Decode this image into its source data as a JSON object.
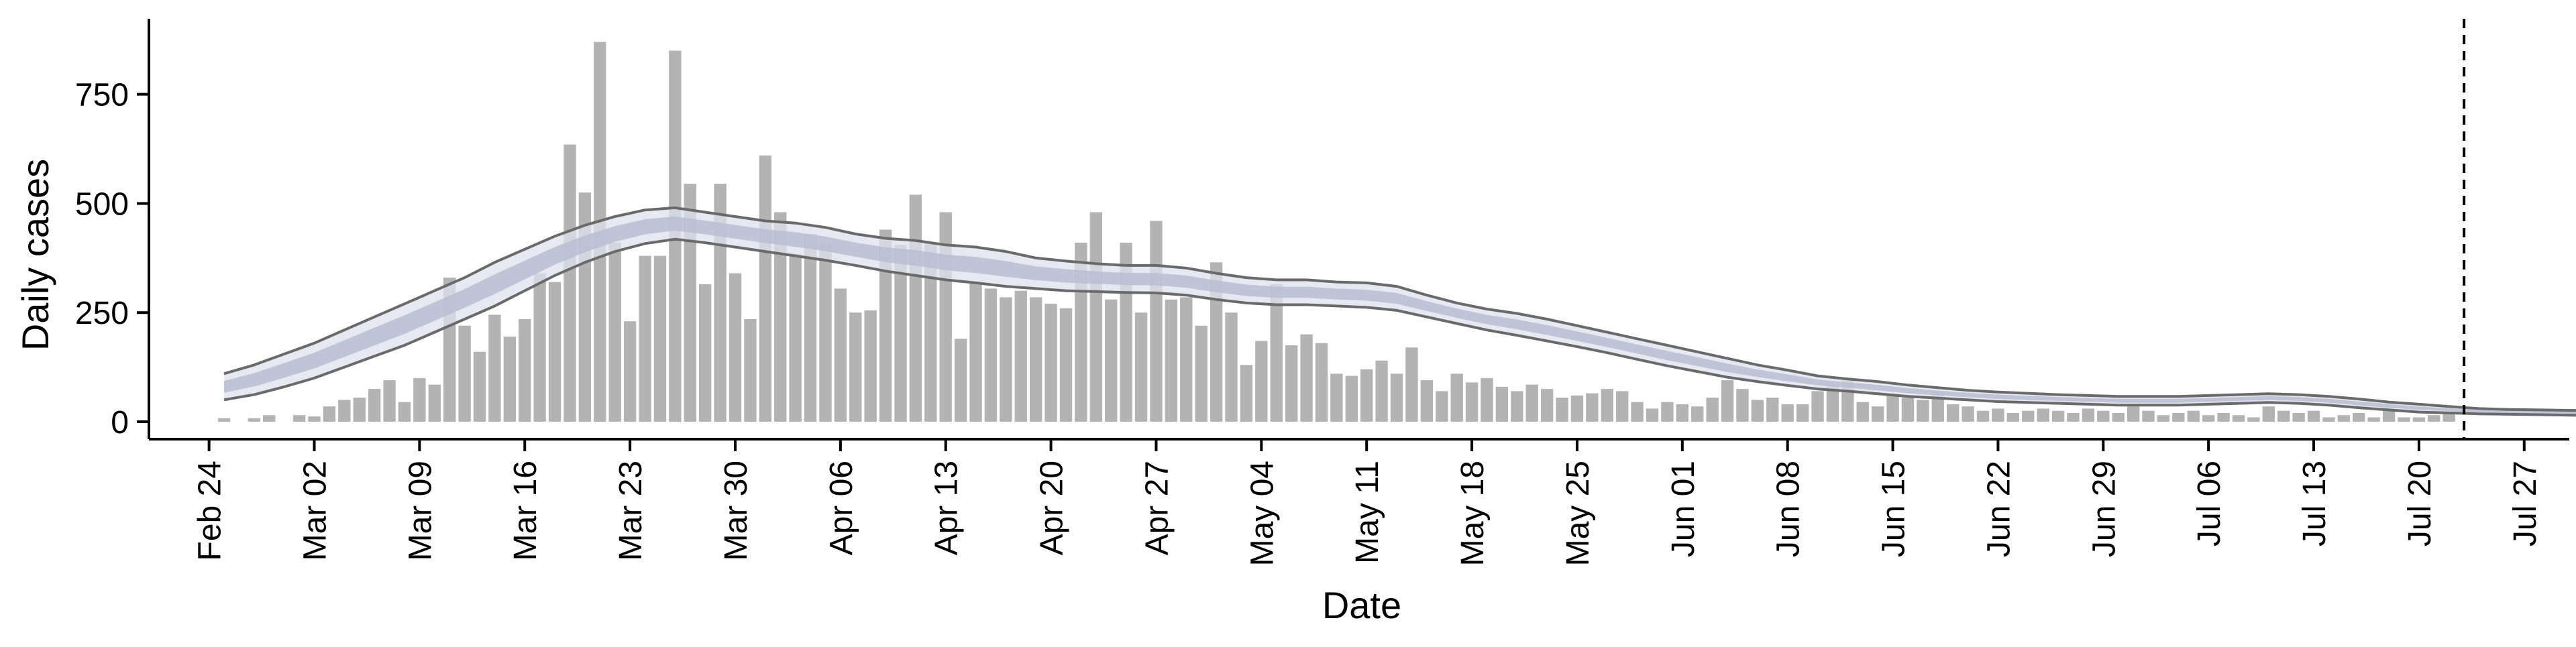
{
  "chart_data": {
    "type": "bar",
    "xlabel": "Date",
    "ylabel": "Daily cases",
    "ylim": [
      -40,
      920
    ],
    "yticks": [
      0,
      250,
      500,
      750
    ],
    "x_start_date": "2020-02-24",
    "xticks": [
      "Feb 24",
      "Mar 02",
      "Mar 09",
      "Mar 16",
      "Mar 23",
      "Mar 30",
      "Apr 06",
      "Apr 13",
      "Apr 20",
      "Apr 27",
      "May 04",
      "May 11",
      "May 18",
      "May 25",
      "Jun 01",
      "Jun 08",
      "Jun 15",
      "Jun 22",
      "Jun 29",
      "Jul 06",
      "Jul 13",
      "Jul 20",
      "Jul 27"
    ],
    "xlim": [
      "2020-02-20",
      "2020-07-30"
    ],
    "vline_date": "2020-07-23",
    "vline_style": "dashed",
    "colors": {
      "bars": "#b3b3b3",
      "band_outer": "#dde1ec",
      "band_inner": "#b7bdd2",
      "band_lines": "#6a6a6a"
    },
    "bars": {
      "start_date": "2020-02-25",
      "values": [
        8,
        0,
        8,
        15,
        0,
        15,
        12,
        35,
        50,
        55,
        75,
        95,
        45,
        100,
        85,
        330,
        220,
        160,
        245,
        195,
        235,
        340,
        320,
        635,
        525,
        870,
        410,
        230,
        380,
        380,
        850,
        545,
        315,
        545,
        340,
        235,
        610,
        480,
        385,
        430,
        410,
        305,
        250,
        255,
        440,
        405,
        520,
        410,
        480,
        190,
        320,
        305,
        285,
        300,
        285,
        270,
        260,
        410,
        480,
        280,
        410,
        250,
        460,
        280,
        285,
        220,
        365,
        250,
        130,
        185,
        315,
        175,
        200,
        180,
        110,
        105,
        120,
        140,
        110,
        170,
        95,
        70,
        110,
        90,
        100,
        80,
        70,
        85,
        75,
        55,
        60,
        65,
        75,
        70,
        45,
        30,
        45,
        40,
        35,
        55,
        95,
        75,
        50,
        55,
        40,
        40,
        70,
        85,
        95,
        45,
        35,
        60,
        55,
        50,
        70,
        40,
        35,
        25,
        30,
        20,
        25,
        30,
        25,
        20,
        30,
        25,
        20,
        35,
        25,
        15,
        20,
        25,
        15,
        20,
        15,
        10,
        35,
        25,
        20,
        25,
        10,
        15,
        20,
        10,
        25,
        10,
        10,
        15,
        20
      ]
    },
    "band": {
      "start_date": "2020-02-25",
      "step_days": 2,
      "upper": [
        110,
        130,
        155,
        180,
        210,
        240,
        270,
        300,
        330,
        365,
        395,
        425,
        450,
        470,
        485,
        490,
        480,
        470,
        460,
        455,
        445,
        430,
        420,
        415,
        405,
        400,
        390,
        375,
        368,
        362,
        358,
        358,
        352,
        340,
        330,
        325,
        325,
        320,
        318,
        310,
        290,
        272,
        258,
        248,
        235,
        220,
        205,
        190,
        175,
        160,
        145,
        130,
        118,
        105,
        98,
        92,
        84,
        78,
        72,
        68,
        65,
        62,
        60,
        58,
        58,
        58,
        60,
        62,
        64,
        62,
        58,
        52,
        45,
        40,
        35,
        30,
        28,
        27,
        26,
        25,
        24,
        24,
        24,
        25,
        25,
        24
      ],
      "lower": [
        50,
        62,
        80,
        100,
        125,
        150,
        175,
        205,
        235,
        265,
        300,
        335,
        365,
        390,
        408,
        418,
        410,
        400,
        390,
        380,
        370,
        358,
        345,
        335,
        325,
        318,
        310,
        305,
        300,
        298,
        296,
        295,
        290,
        280,
        272,
        268,
        268,
        265,
        262,
        255,
        240,
        225,
        210,
        198,
        185,
        172,
        158,
        143,
        128,
        115,
        102,
        92,
        83,
        75,
        70,
        64,
        58,
        54,
        50,
        46,
        44,
        42,
        40,
        38,
        38,
        38,
        40,
        42,
        44,
        42,
        38,
        32,
        27,
        22,
        20,
        18,
        17,
        16,
        15,
        14,
        13,
        13,
        13,
        14,
        14,
        13
      ]
    }
  }
}
